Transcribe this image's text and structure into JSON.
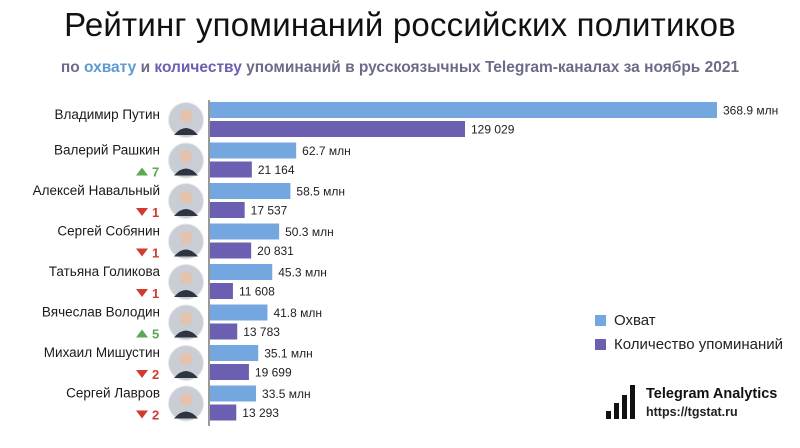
{
  "header": {
    "title": "Рейтинг упоминаний российских политиков",
    "subtitle_pre": "по ",
    "subtitle_reach": "охвату",
    "subtitle_mid": " и ",
    "subtitle_count": "количеству",
    "subtitle_post": " упоминаний в русскоязычных Telegram-каналах за ноябрь 2021"
  },
  "colors": {
    "reach": "#74a7e0",
    "count": "#6a5fb0",
    "up": "#5aa851",
    "down": "#d23a30"
  },
  "chart_data": {
    "type": "bar",
    "orientation": "horizontal",
    "categories": [
      "Владимир Путин",
      "Валерий Рашкин",
      "Алексей Навальный",
      "Сергей Собянин",
      "Татьяна Голикова",
      "Вячеслав Володин",
      "Михаил Мишустин",
      "Сергей Лавров"
    ],
    "series": [
      {
        "name": "Охват",
        "values": [
          368.9,
          62.7,
          58.5,
          50.3,
          45.3,
          41.8,
          35.1,
          33.5
        ],
        "labels": [
          "368.9 млн",
          "62.7 млн",
          "58.5 млн",
          "50.3 млн",
          "45.3 млн",
          "41.8 млн",
          "35.1 млн",
          "33.5 млн"
        ]
      },
      {
        "name": "Количество упоминаний",
        "values": [
          129029,
          21164,
          17537,
          20831,
          11608,
          13783,
          19699,
          13293
        ],
        "labels": [
          "129 029",
          "21 164",
          "17 537",
          "20 831",
          "11 608",
          "13 783",
          "19 699",
          "13 293"
        ]
      }
    ],
    "rank_change": [
      {
        "dir": "",
        "value": ""
      },
      {
        "dir": "up",
        "value": "7"
      },
      {
        "dir": "down",
        "value": "1"
      },
      {
        "dir": "down",
        "value": "1"
      },
      {
        "dir": "down",
        "value": "1"
      },
      {
        "dir": "up",
        "value": "5"
      },
      {
        "dir": "down",
        "value": "2"
      },
      {
        "dir": "down",
        "value": "2"
      }
    ],
    "legend_position": "right",
    "grid": false
  },
  "legend": {
    "reach_label": "Охват",
    "count_label": "Количество упоминаний"
  },
  "brand": {
    "name": "Telegram Analytics",
    "url": "https://tgstat.ru"
  }
}
